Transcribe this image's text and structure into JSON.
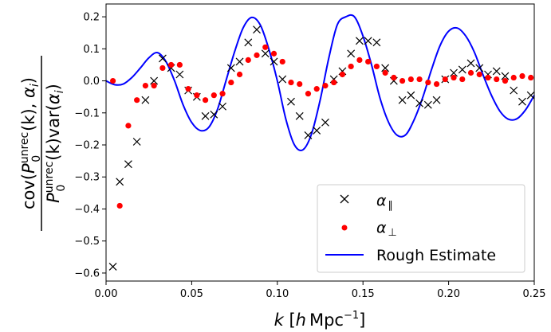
{
  "chart_data": {
    "type": "scatter",
    "xlim": [
      0.0,
      0.25
    ],
    "ylim": [
      -0.625,
      0.24
    ],
    "x_ticks": [
      0.0,
      0.05,
      0.1,
      0.15,
      0.2,
      0.25
    ],
    "x_tick_labels": [
      "0.00",
      "0.05",
      "0.10",
      "0.15",
      "0.20",
      "0.25"
    ],
    "y_ticks": [
      -0.6,
      -0.5,
      -0.4,
      -0.3,
      -0.2,
      -0.1,
      0.0,
      0.1,
      0.2
    ],
    "y_tick_labels": [
      "−0.6",
      "−0.5",
      "−0.4",
      "−0.3",
      "−0.2",
      "−0.1",
      "0.0",
      "0.1",
      "0.2"
    ],
    "xlabel": {
      "main": "k",
      "bracket_open": " [",
      "h": "h",
      "unit": "Mpc",
      "exponent": "−1",
      "bracket_close": "]"
    },
    "ylabel": {
      "numerator": {
        "cov": "cov(",
        "P": "P",
        "sup": "unrec",
        "sub": "0",
        "k": "(k), ",
        "alpha": "α",
        "i": "i",
        "close": ")"
      },
      "denominator": {
        "P": "P",
        "sup": "unrec",
        "sub": "0",
        "k": "(k)var(",
        "alpha": "α",
        "i": "i",
        "close": ")"
      }
    },
    "grid": false,
    "legend_position": "lower-right",
    "legend_font_family": "DejaVu Sans",
    "series": [
      {
        "name": "α",
        "name_sub": "∥",
        "marker": "x",
        "color": "#000000",
        "x": [
          0.004,
          0.008,
          0.013,
          0.018,
          0.023,
          0.028,
          0.033,
          0.038,
          0.043,
          0.048,
          0.053,
          0.058,
          0.063,
          0.068,
          0.073,
          0.078,
          0.083,
          0.088,
          0.093,
          0.098,
          0.103,
          0.108,
          0.113,
          0.118,
          0.123,
          0.128,
          0.133,
          0.138,
          0.143,
          0.148,
          0.153,
          0.158,
          0.163,
          0.168,
          0.173,
          0.178,
          0.183,
          0.188,
          0.193,
          0.198,
          0.203,
          0.208,
          0.213,
          0.218,
          0.223,
          0.228,
          0.233,
          0.238,
          0.243,
          0.248
        ],
        "y": [
          -0.58,
          -0.315,
          -0.26,
          -0.19,
          -0.06,
          0.0,
          0.07,
          0.04,
          0.02,
          -0.03,
          -0.05,
          -0.11,
          -0.105,
          -0.08,
          0.04,
          0.06,
          0.12,
          0.16,
          0.085,
          0.06,
          0.005,
          -0.065,
          -0.11,
          -0.17,
          -0.155,
          -0.13,
          0.005,
          0.03,
          0.085,
          0.125,
          0.125,
          0.12,
          0.04,
          0.0,
          -0.06,
          -0.045,
          -0.07,
          -0.075,
          -0.06,
          0.005,
          0.025,
          0.035,
          0.055,
          0.04,
          0.02,
          0.03,
          0.015,
          -0.03,
          -0.065,
          -0.045
        ]
      },
      {
        "name": "α",
        "name_sub": "⊥",
        "marker": "o",
        "color": "#ff0000",
        "x": [
          0.004,
          0.008,
          0.013,
          0.018,
          0.023,
          0.028,
          0.033,
          0.038,
          0.043,
          0.048,
          0.053,
          0.058,
          0.063,
          0.068,
          0.073,
          0.078,
          0.083,
          0.088,
          0.093,
          0.098,
          0.103,
          0.108,
          0.113,
          0.118,
          0.123,
          0.128,
          0.133,
          0.138,
          0.143,
          0.148,
          0.153,
          0.158,
          0.163,
          0.168,
          0.173,
          0.178,
          0.183,
          0.188,
          0.193,
          0.198,
          0.203,
          0.208,
          0.213,
          0.218,
          0.223,
          0.228,
          0.233,
          0.238,
          0.243,
          0.248
        ],
        "y": [
          0.0,
          -0.39,
          -0.14,
          -0.06,
          -0.015,
          -0.015,
          0.04,
          0.05,
          0.05,
          -0.025,
          -0.045,
          -0.06,
          -0.045,
          -0.04,
          -0.005,
          0.02,
          0.065,
          0.08,
          0.105,
          0.085,
          0.06,
          -0.005,
          -0.01,
          -0.04,
          -0.025,
          -0.015,
          -0.005,
          0.02,
          0.045,
          0.065,
          0.06,
          0.045,
          0.025,
          0.01,
          0.0,
          0.005,
          0.005,
          -0.005,
          -0.01,
          0.005,
          0.01,
          0.005,
          0.025,
          0.02,
          0.01,
          0.005,
          0.0,
          0.01,
          0.015,
          0.01
        ]
      },
      {
        "name": "Rough Estimate",
        "marker": "line",
        "color": "#0000ff",
        "x": [
          0.0,
          0.005,
          0.01,
          0.015,
          0.02,
          0.025,
          0.03,
          0.035,
          0.04,
          0.045,
          0.05,
          0.055,
          0.06,
          0.065,
          0.07,
          0.075,
          0.08,
          0.085,
          0.09,
          0.095,
          0.1,
          0.105,
          0.11,
          0.115,
          0.12,
          0.125,
          0.13,
          0.135,
          0.14,
          0.145,
          0.15,
          0.155,
          0.16,
          0.165,
          0.17,
          0.175,
          0.18,
          0.185,
          0.19,
          0.195,
          0.2,
          0.205,
          0.21,
          0.215,
          0.22,
          0.225,
          0.23,
          0.235,
          0.24,
          0.245,
          0.25
        ],
        "y": [
          0.0,
          -0.012,
          -0.01,
          0.01,
          0.04,
          0.072,
          0.088,
          0.06,
          0.0,
          -0.075,
          -0.13,
          -0.155,
          -0.145,
          -0.09,
          0.0,
          0.09,
          0.165,
          0.198,
          0.175,
          0.1,
          0.0,
          -0.12,
          -0.2,
          -0.215,
          -0.165,
          -0.06,
          0.07,
          0.175,
          0.2,
          0.2,
          0.14,
          0.05,
          -0.055,
          -0.13,
          -0.17,
          -0.168,
          -0.12,
          -0.05,
          0.035,
          0.11,
          0.155,
          0.165,
          0.14,
          0.09,
          0.02,
          -0.045,
          -0.095,
          -0.12,
          -0.118,
          -0.09,
          -0.045
        ]
      }
    ]
  }
}
